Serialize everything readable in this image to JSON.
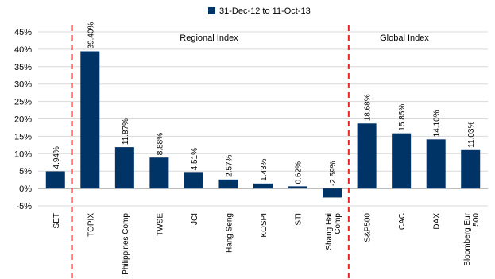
{
  "chart_data": {
    "type": "bar",
    "legend": {
      "label": "31-Dec-12 to 11-Oct-13",
      "color": "#003366",
      "placement": "top-center"
    },
    "categories": [
      "SET",
      "TOPIX",
      "Philippines Comp",
      "TWSE",
      "JCI",
      "Hang Seng",
      "KOSPI",
      "STI",
      "Shang Hai Comp",
      "S&P500",
      "CAC",
      "DAX",
      "Bloomberg Eur 500"
    ],
    "category_lines": [
      [
        "SET"
      ],
      [
        "TOPIX"
      ],
      [
        "Philippines Comp"
      ],
      [
        "TWSE"
      ],
      [
        "JCI"
      ],
      [
        "Hang Seng"
      ],
      [
        "KOSPI"
      ],
      [
        "STI"
      ],
      [
        "Shang Hai",
        "Comp"
      ],
      [
        "S&P500"
      ],
      [
        "CAC"
      ],
      [
        "DAX"
      ],
      [
        "Bloomberg Eur",
        "500"
      ]
    ],
    "series": [
      {
        "name": "31-Dec-12 to 11-Oct-13",
        "values": [
          4.94,
          39.4,
          11.87,
          8.88,
          4.51,
          2.57,
          1.43,
          0.62,
          -2.59,
          18.68,
          15.85,
          14.1,
          11.03
        ]
      }
    ],
    "data_labels": [
      "4.94%",
      "39.40%",
      "11.87%",
      "8.88%",
      "4.51%",
      "2.57%",
      "1.43%",
      "0.62%",
      "-2.59%",
      "18.68%",
      "15.85%",
      "14.10%",
      "11.03%"
    ],
    "ylim": [
      -5,
      45
    ],
    "yticks": [
      -5,
      0,
      5,
      10,
      15,
      20,
      25,
      30,
      35,
      40,
      45
    ],
    "ytick_labels": [
      "-5%",
      "0%",
      "5%",
      "10%",
      "15%",
      "20%",
      "25%",
      "30%",
      "35%",
      "40%",
      "45%"
    ],
    "grid": true,
    "annotations": {
      "regional": "Regional Index",
      "global": "Global Index"
    },
    "divider_color": "#e8262a",
    "bar_color": "#003366"
  }
}
